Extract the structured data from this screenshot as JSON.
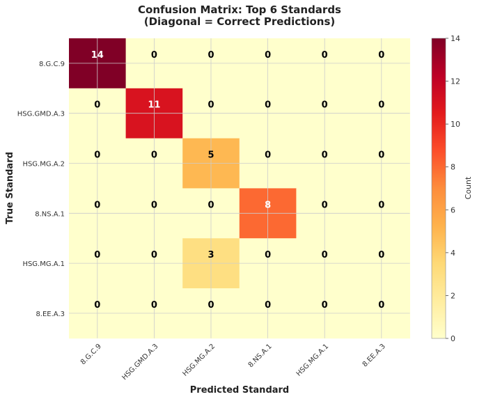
{
  "chart_data": {
    "type": "heatmap",
    "title_line1": "Confusion Matrix: Top 6 Standards",
    "title_line2": "(Diagonal = Correct Predictions)",
    "xlabel": "Predicted Standard",
    "ylabel": "True Standard",
    "colorbar_label": "Count",
    "x_categories": [
      "8.G.C.9",
      "HSG.GMD.A.3",
      "HSG.MG.A.2",
      "8.NS.A.1",
      "HSG.MG.A.1",
      "8.EE.A.3"
    ],
    "y_categories": [
      "8.G.C.9",
      "HSG.GMD.A.3",
      "HSG.MG.A.2",
      "8.NS.A.1",
      "HSG.MG.A.1",
      "8.EE.A.3"
    ],
    "values": [
      [
        14,
        0,
        0,
        0,
        0,
        0
      ],
      [
        0,
        11,
        0,
        0,
        0,
        0
      ],
      [
        0,
        0,
        5,
        0,
        0,
        0
      ],
      [
        0,
        0,
        0,
        8,
        0,
        0
      ],
      [
        0,
        0,
        3,
        0,
        0,
        0
      ],
      [
        0,
        0,
        0,
        0,
        0,
        0
      ]
    ],
    "colorbar_range": [
      0,
      14
    ],
    "colorbar_ticks": [
      0,
      2,
      4,
      6,
      8,
      10,
      12,
      14
    ],
    "colormap": "YlOrRd",
    "grid": true
  }
}
